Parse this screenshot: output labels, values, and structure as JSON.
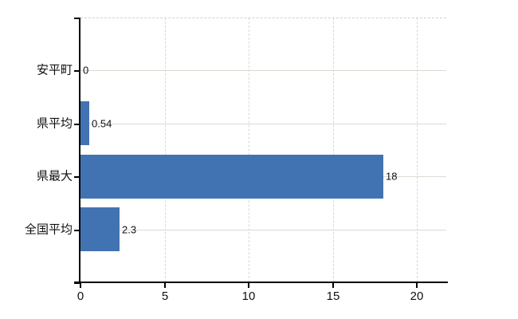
{
  "chart_data": {
    "type": "bar",
    "orientation": "horizontal",
    "title": "",
    "xlabel": "",
    "ylabel": "",
    "legend": "none",
    "grid": "on",
    "categories": [
      "安平町",
      "県平均",
      "県最大",
      "全国平均"
    ],
    "values": [
      0,
      0.54,
      18,
      2.3
    ],
    "value_labels": [
      "0",
      "0.54",
      "18",
      "2.3"
    ],
    "x_ticks": [
      0,
      5,
      10,
      15,
      20
    ],
    "x_tick_labels": [
      "0",
      "5",
      "10",
      "15",
      "20"
    ],
    "xlim": [
      0,
      21.75
    ],
    "colors": {
      "bar": "#4173b2",
      "axis": "#000000",
      "text": "#111111",
      "hgrid": "#d6ddd2",
      "vgrid": "#d8d8d8",
      "plot_border": "#cfcfcf",
      "background": "#ffffff"
    }
  }
}
